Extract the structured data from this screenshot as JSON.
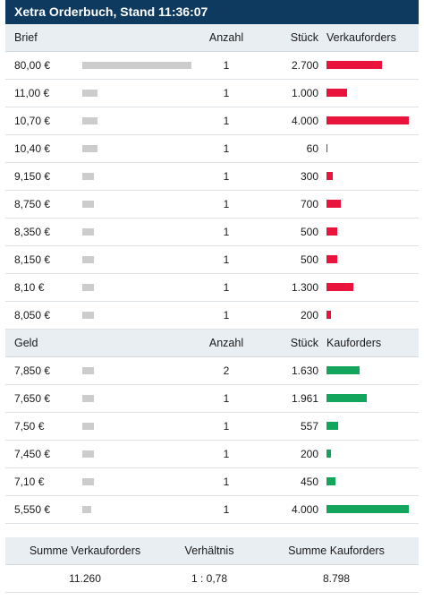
{
  "title": "Xetra Orderbuch, Stand 11:36:07",
  "colors": {
    "title_bg": "#0f3a5f",
    "sell_bar": "#e8143c",
    "buy_bar": "#12a55b",
    "volume_bar": "#cccccc"
  },
  "columns": {
    "count": "Anzahl",
    "pieces": "Stück"
  },
  "ask": {
    "label": "Brief",
    "orders_label": "Verkauforders",
    "rows": [
      {
        "price": "80,00 €",
        "count": "1",
        "pieces": "2.700",
        "pieces_value": 2700,
        "volume_fraction": 1.0
      },
      {
        "price": "11,00 €",
        "count": "1",
        "pieces": "1.000",
        "pieces_value": 1000,
        "volume_fraction": 0.14
      },
      {
        "price": "10,70 €",
        "count": "1",
        "pieces": "4.000",
        "pieces_value": 4000,
        "volume_fraction": 0.14
      },
      {
        "price": "10,40 €",
        "count": "1",
        "pieces": "60",
        "pieces_value": 60,
        "volume_fraction": 0.14
      },
      {
        "price": "9,150 €",
        "count": "1",
        "pieces": "300",
        "pieces_value": 300,
        "volume_fraction": 0.11
      },
      {
        "price": "8,750 €",
        "count": "1",
        "pieces": "700",
        "pieces_value": 700,
        "volume_fraction": 0.11
      },
      {
        "price": "8,350 €",
        "count": "1",
        "pieces": "500",
        "pieces_value": 500,
        "volume_fraction": 0.11
      },
      {
        "price": "8,150 €",
        "count": "1",
        "pieces": "500",
        "pieces_value": 500,
        "volume_fraction": 0.11
      },
      {
        "price": "8,10 €",
        "count": "1",
        "pieces": "1.300",
        "pieces_value": 1300,
        "volume_fraction": 0.11
      },
      {
        "price": "8,050 €",
        "count": "1",
        "pieces": "200",
        "pieces_value": 200,
        "volume_fraction": 0.11
      }
    ]
  },
  "bid": {
    "label": "Geld",
    "orders_label": "Kauforders",
    "rows": [
      {
        "price": "7,850 €",
        "count": "2",
        "pieces": "1.630",
        "pieces_value": 1630,
        "volume_fraction": 0.11
      },
      {
        "price": "7,650 €",
        "count": "1",
        "pieces": "1.961",
        "pieces_value": 1961,
        "volume_fraction": 0.11
      },
      {
        "price": "7,50 €",
        "count": "1",
        "pieces": "557",
        "pieces_value": 557,
        "volume_fraction": 0.11
      },
      {
        "price": "7,450 €",
        "count": "1",
        "pieces": "200",
        "pieces_value": 200,
        "volume_fraction": 0.11
      },
      {
        "price": "7,10 €",
        "count": "1",
        "pieces": "450",
        "pieces_value": 450,
        "volume_fraction": 0.11
      },
      {
        "price": "5,550 €",
        "count": "1",
        "pieces": "4.000",
        "pieces_value": 4000,
        "volume_fraction": 0.08
      }
    ]
  },
  "bar_max_pieces": 4000,
  "summary": {
    "sell_label": "Summe Verkauforders",
    "ratio_label": "Verhältnis",
    "buy_label": "Summe Kauforders",
    "sell_value": "11.260",
    "ratio_value": "1 : 0,78",
    "buy_value": "8.798"
  }
}
